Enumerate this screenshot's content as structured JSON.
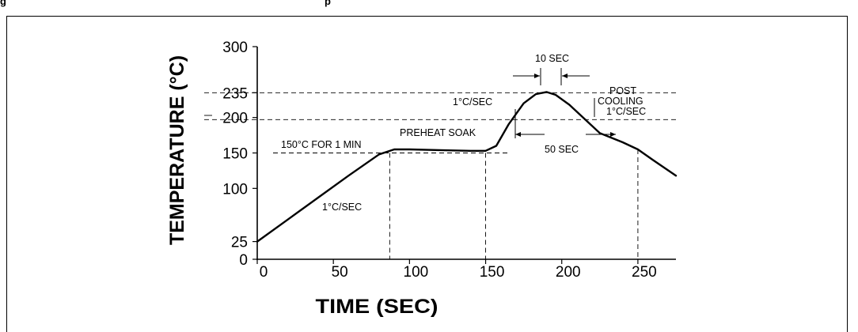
{
  "header": {
    "text_left": "g",
    "text_right": "p"
  },
  "chart_data": {
    "type": "line",
    "title": "",
    "xlabel": "TIME (SEC)",
    "ylabel": "TEMPERATURE  (°C)",
    "xlim": [
      0,
      275
    ],
    "ylim": [
      0,
      300
    ],
    "x_ticks": [
      0,
      50,
      100,
      150,
      200,
      250
    ],
    "y_ticks": [
      0,
      25,
      100,
      150,
      200,
      235,
      300
    ],
    "grid": false,
    "series": [
      {
        "name": "",
        "x": [
          0,
          20,
          40,
          60,
          80,
          90,
          100,
          120,
          140,
          150,
          157,
          165,
          175,
          183,
          190,
          196,
          205,
          215,
          225,
          240,
          250,
          260,
          275
        ],
        "y": [
          25,
          56,
          87,
          118,
          148,
          155,
          155,
          154,
          153,
          153,
          160,
          190,
          220,
          233,
          236,
          232,
          218,
          198,
          178,
          165,
          155,
          140,
          118
        ]
      }
    ],
    "reference_lines": {
      "horizontal": [
        235,
        197,
        150
      ],
      "vertical": [
        87,
        150,
        250
      ]
    },
    "annotations": [
      "10 SEC",
      "1°C/SEC",
      "POST",
      "COOLING",
      "1°C/SEC",
      "PREHEAT SOAK",
      "150°C FOR 1 MIN",
      "50 SEC",
      "1°C/SEC"
    ]
  }
}
